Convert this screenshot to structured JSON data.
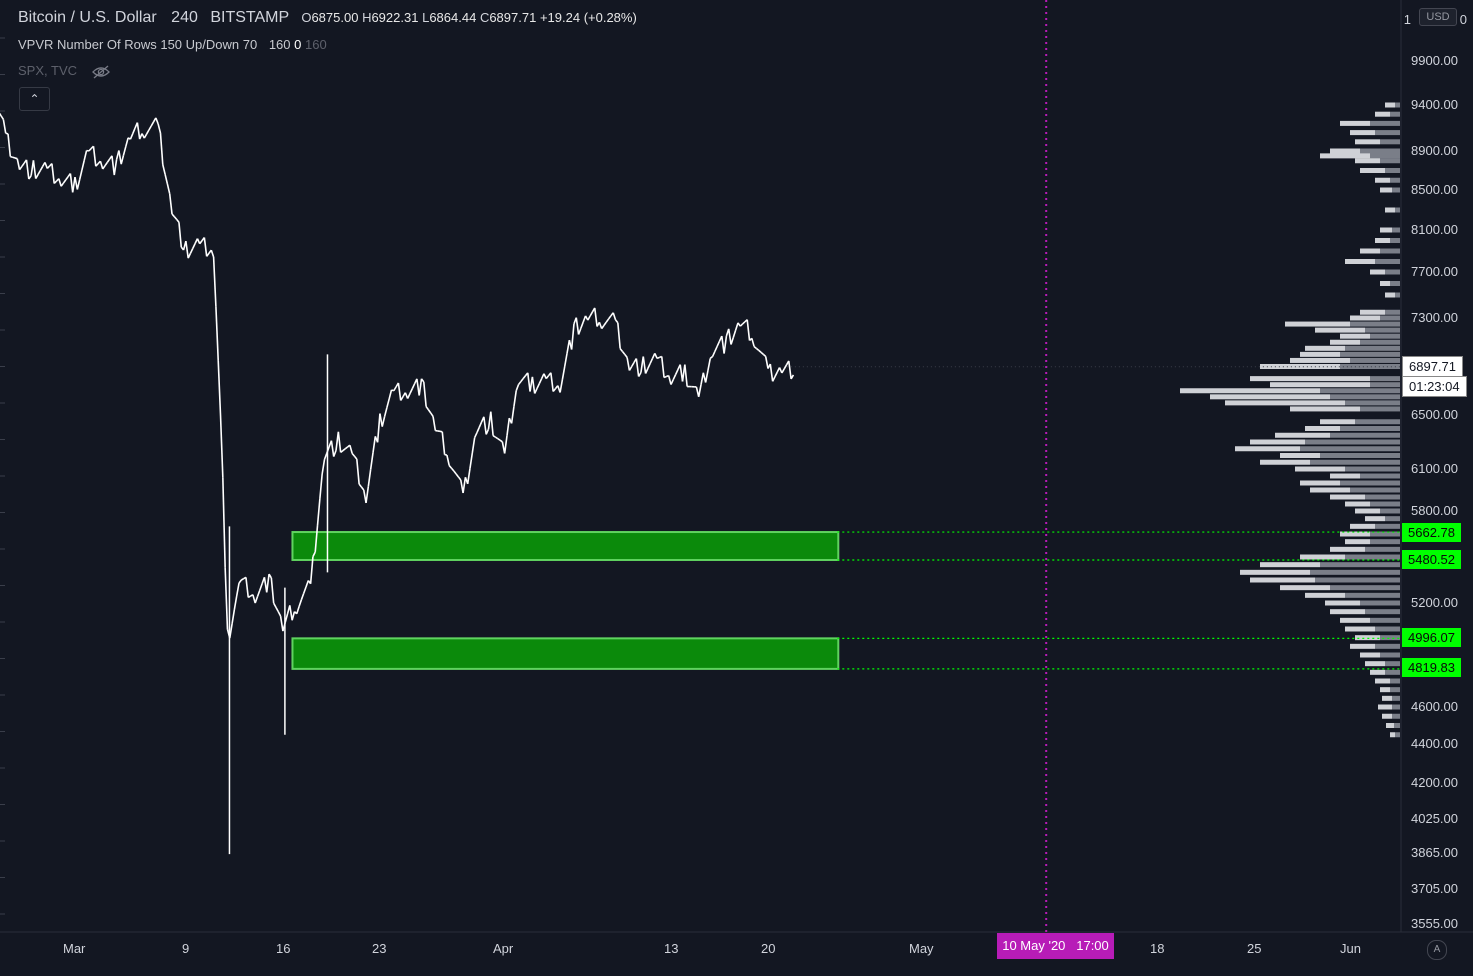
{
  "chart_header": {
    "symbol": "Bitcoin / U.S. Dollar",
    "interval": "240",
    "exchange": "BITSTAMP",
    "open_key": "O",
    "open": "6875.00",
    "high_key": "H",
    "high": "6922.31",
    "low_key": "L",
    "low": "6864.44",
    "close_key": "C",
    "close": "6897.71",
    "change": "+19.24 (+0.28%)"
  },
  "indicator": {
    "name": "VPVR",
    "params": "Number Of Rows 150 Up/Down 70",
    "val1": "160",
    "val2": "0",
    "val3": "160"
  },
  "compare": {
    "label": "SPX, TVC",
    "hide_icon": "eye-slash-icon"
  },
  "ui": {
    "collapse_icon": "chevron-up-icon",
    "collapse_glyph": "⌃",
    "currency": "USD",
    "auto_scale": "A"
  },
  "price_axis": {
    "top_partial": "1",
    "top_partial_right": "0",
    "labels": [
      "9900.00",
      "9400.00",
      "8900.00",
      "8500.00",
      "8100.00",
      "7700.00",
      "7300.00",
      "6500.00",
      "6100.00",
      "5800.00",
      "5200.00",
      "4600.00",
      "4400.00",
      "4200.00",
      "4025.00",
      "3865.00",
      "3705.00",
      "3555.00"
    ]
  },
  "time_axis": {
    "labels": [
      "Mar",
      "9",
      "16",
      "23",
      "Apr",
      "13",
      "20",
      "May",
      "18",
      "25",
      "Jun"
    ],
    "cursor_label": "10 May '20   17:00"
  },
  "price_tags": {
    "last_price": "6897.71",
    "countdown": "01:23:04",
    "zone_levels": [
      "5662.78",
      "5480.52",
      "4996.07",
      "4819.83"
    ]
  },
  "colors": {
    "background": "#131722",
    "candles": "#ffffff",
    "zone_fill": "#0b8a0b",
    "zone_line": "#00ff00",
    "cursor": "#b71cb7",
    "vpvr_up": "#cfd1d6",
    "vpvr_down": "#7a7e88"
  },
  "chart_data": {
    "type": "line",
    "title": "Bitcoin / U.S. Dollar · 240 · BITSTAMP",
    "xlabel": "",
    "ylabel": "",
    "x_range": [
      "2020-02-24",
      "2020-06-05"
    ],
    "ylim": [
      3480,
      10200
    ],
    "series": [
      {
        "x": [
          "2020-02-24",
          "2020-02-25",
          "2020-02-26",
          "2020-02-27",
          "2020-02-28",
          "2020-02-29",
          "2020-03-01",
          "2020-03-02",
          "2020-03-03",
          "2020-03-04",
          "2020-03-05",
          "2020-03-06",
          "2020-03-07",
          "2020-03-08",
          "2020-03-09",
          "2020-03-10",
          "2020-03-11",
          "2020-03-12",
          "2020-03-13",
          "2020-03-14",
          "2020-03-15",
          "2020-03-16",
          "2020-03-17",
          "2020-03-18",
          "2020-03-19",
          "2020-03-20",
          "2020-03-21",
          "2020-03-22",
          "2020-03-23",
          "2020-03-24",
          "2020-03-25",
          "2020-03-26",
          "2020-03-27",
          "2020-03-28",
          "2020-03-29",
          "2020-03-30",
          "2020-03-31",
          "2020-04-01",
          "2020-04-02",
          "2020-04-03",
          "2020-04-04",
          "2020-04-05",
          "2020-04-06",
          "2020-04-07",
          "2020-04-08",
          "2020-04-09",
          "2020-04-10",
          "2020-04-11",
          "2020-04-12",
          "2020-04-13",
          "2020-04-14",
          "2020-04-15",
          "2020-04-16",
          "2020-04-17",
          "2020-04-18",
          "2020-04-19",
          "2020-04-20",
          "2020-04-21"
        ],
        "values": [
          9550,
          9050,
          8750,
          8700,
          8700,
          8600,
          8550,
          8900,
          8800,
          8750,
          9050,
          9150,
          9150,
          8300,
          7900,
          7950,
          7900,
          5000,
          5350,
          5250,
          5350,
          5050,
          5200,
          5300,
          6200,
          6300,
          6200,
          5900,
          6450,
          6700,
          6700,
          6750,
          6400,
          6200,
          5900,
          6400,
          6450,
          6200,
          6800,
          6750,
          6800,
          6750,
          7200,
          7300,
          7300,
          7250,
          6900,
          6900,
          6950,
          6800,
          6850,
          6650,
          7050,
          7100,
          7250,
          7150,
          6850,
          6880
        ]
      }
    ],
    "zones": [
      {
        "top": 5662.78,
        "bottom": 5480.52,
        "from": "2020-03-12",
        "to": "2020-04-25"
      },
      {
        "top": 4996.07,
        "bottom": 4819.83,
        "from": "2020-03-12",
        "to": "2020-04-25"
      }
    ],
    "cursor_date": "2020-05-10",
    "volume_profile_note": "VPVR rows right side"
  }
}
